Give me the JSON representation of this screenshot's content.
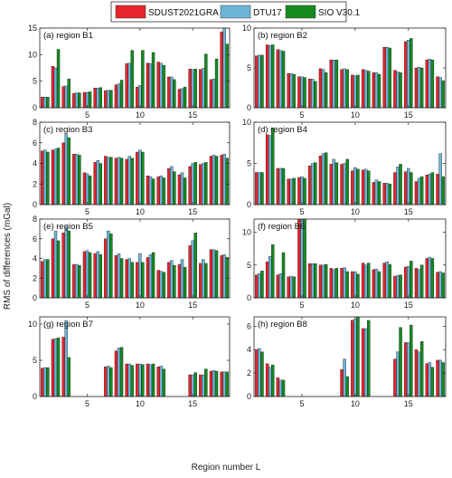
{
  "figure": {
    "ylabel": "RMS of differences (mGal)",
    "xlabel": "Region number L"
  },
  "legend": {
    "placement": "top-center",
    "entries": [
      {
        "name": "SDUST2021GRA",
        "color": "#e8232a"
      },
      {
        "name": "DTU17",
        "color": "#6cb4d8"
      },
      {
        "name": "SIO V30.1",
        "color": "#158a1f"
      }
    ]
  },
  "chart_data": [
    {
      "type": "bar",
      "title": "(a) region B1",
      "ylim": [
        0,
        15
      ],
      "yticks": [
        0,
        5,
        10,
        15
      ],
      "xlim": [
        0.5,
        18.5
      ],
      "xticks": [
        5,
        10,
        15
      ],
      "x": [
        1,
        2,
        3,
        4,
        5,
        6,
        7,
        8,
        9,
        10,
        11,
        12,
        13,
        14,
        15,
        16,
        17,
        18
      ],
      "series": [
        {
          "name": "SDUST2021GRA",
          "values": [
            2.0,
            7.8,
            4.0,
            2.7,
            2.9,
            3.7,
            3.2,
            4.3,
            8.3,
            3.9,
            8.4,
            8.6,
            5.8,
            3.5,
            7.3,
            7.2,
            5.3,
            14.3
          ]
        },
        {
          "name": "DTU17",
          "values": [
            2.0,
            7.5,
            4.1,
            2.8,
            2.9,
            3.7,
            3.3,
            4.5,
            8.4,
            4.2,
            8.3,
            8.4,
            5.8,
            3.6,
            7.2,
            7.4,
            5.4,
            15.0
          ]
        },
        {
          "name": "SIO V30.1",
          "values": [
            2.0,
            11.0,
            5.4,
            2.8,
            3.0,
            3.8,
            3.3,
            5.2,
            10.8,
            10.8,
            10.4,
            8.0,
            5.3,
            3.9,
            7.3,
            10.1,
            9.2,
            12.0
          ]
        }
      ]
    },
    {
      "type": "bar",
      "title": "(b) region B2",
      "ylim": [
        0,
        10
      ],
      "yticks": [
        0,
        5,
        10
      ],
      "xlim": [
        0.5,
        18.5
      ],
      "xticks": [
        5,
        10,
        15
      ],
      "x": [
        1,
        2,
        3,
        4,
        5,
        6,
        7,
        8,
        9,
        10,
        11,
        12,
        13,
        14,
        15,
        16,
        17,
        18
      ],
      "series": [
        {
          "name": "SDUST2021GRA",
          "values": [
            6.5,
            7.9,
            7.3,
            4.3,
            3.9,
            3.6,
            4.9,
            6.0,
            4.8,
            4.1,
            4.8,
            4.4,
            7.6,
            4.7,
            8.3,
            5.0,
            6.0,
            3.9
          ]
        },
        {
          "name": "DTU17",
          "values": [
            6.6,
            7.8,
            7.2,
            4.3,
            3.9,
            3.6,
            4.8,
            6.0,
            4.9,
            4.0,
            4.7,
            4.4,
            7.6,
            4.5,
            8.5,
            5.1,
            6.1,
            3.8
          ]
        },
        {
          "name": "SIO V30.1",
          "values": [
            6.6,
            7.9,
            7.1,
            4.2,
            3.8,
            3.3,
            4.4,
            6.0,
            4.8,
            4.1,
            4.6,
            4.2,
            7.5,
            4.4,
            8.7,
            5.0,
            6.0,
            3.4
          ]
        }
      ]
    },
    {
      "type": "bar",
      "title": "(c) region B3",
      "ylim": [
        0,
        8
      ],
      "yticks": [
        0,
        2,
        4,
        6,
        8
      ],
      "xlim": [
        0.5,
        18.5
      ],
      "xticks": [
        5,
        10,
        15
      ],
      "x": [
        1,
        2,
        3,
        4,
        5,
        6,
        7,
        8,
        9,
        10,
        11,
        12,
        13,
        14,
        15,
        16,
        17,
        18
      ],
      "series": [
        {
          "name": "SDUST2021GRA",
          "values": [
            5.2,
            5.3,
            6.0,
            4.9,
            3.1,
            4.1,
            4.7,
            4.5,
            4.4,
            5.1,
            2.8,
            2.7,
            3.5,
            2.9,
            3.7,
            3.9,
            4.7,
            4.8
          ]
        },
        {
          "name": "DTU17",
          "values": [
            5.3,
            5.4,
            6.8,
            4.9,
            3.0,
            4.3,
            4.6,
            4.6,
            4.7,
            5.3,
            2.7,
            2.8,
            3.7,
            3.1,
            4.0,
            4.0,
            4.8,
            4.9
          ]
        },
        {
          "name": "SIO V30.1",
          "values": [
            5.1,
            5.5,
            6.5,
            4.8,
            2.8,
            4.0,
            4.6,
            4.5,
            4.5,
            5.1,
            2.5,
            2.6,
            3.2,
            2.6,
            4.1,
            4.1,
            4.7,
            4.5
          ]
        }
      ]
    },
    {
      "type": "bar",
      "title": "(d) region B4",
      "ylim": [
        0,
        10
      ],
      "yticks": [
        0,
        5,
        10
      ],
      "xlim": [
        0.5,
        18.5
      ],
      "xticks": [
        5,
        10,
        15
      ],
      "x": [
        1,
        2,
        3,
        4,
        5,
        6,
        7,
        8,
        9,
        10,
        11,
        12,
        13,
        14,
        15,
        16,
        17,
        18
      ],
      "series": [
        {
          "name": "SDUST2021GRA",
          "values": [
            3.9,
            8.5,
            4.4,
            3.1,
            3.3,
            4.7,
            5.9,
            4.9,
            4.9,
            4.1,
            4.2,
            2.7,
            2.6,
            3.9,
            4.0,
            2.8,
            3.6,
            3.7
          ]
        },
        {
          "name": "DTU17",
          "values": [
            3.9,
            8.4,
            4.4,
            3.1,
            3.4,
            5.0,
            6.2,
            5.5,
            5.0,
            4.5,
            4.3,
            3.0,
            2.6,
            4.6,
            4.4,
            3.2,
            3.7,
            6.2
          ]
        },
        {
          "name": "SIO V30.1",
          "values": [
            3.9,
            9.3,
            4.4,
            3.2,
            3.2,
            5.1,
            6.3,
            5.1,
            5.5,
            4.3,
            4.1,
            2.8,
            2.5,
            4.9,
            3.9,
            3.4,
            3.9,
            3.4
          ]
        }
      ]
    },
    {
      "type": "bar",
      "title": "(e) region B5",
      "ylim": [
        0,
        8
      ],
      "yticks": [
        0,
        2,
        4,
        6,
        8
      ],
      "xlim": [
        0.5,
        18.5
      ],
      "xticks": [
        5,
        10,
        15
      ],
      "x": [
        1,
        2,
        3,
        4,
        5,
        6,
        7,
        8,
        9,
        10,
        11,
        12,
        13,
        14,
        15,
        16,
        17,
        18
      ],
      "series": [
        {
          "name": "SDUST2021GRA",
          "values": [
            3.7,
            6.0,
            6.6,
            3.4,
            4.7,
            4.5,
            6.0,
            4.3,
            3.9,
            3.6,
            4.1,
            2.8,
            3.6,
            3.4,
            5.3,
            3.5,
            4.9,
            4.3
          ]
        },
        {
          "name": "DTU17",
          "values": [
            3.9,
            6.8,
            7.2,
            3.4,
            4.8,
            4.7,
            6.8,
            4.5,
            4.0,
            4.5,
            4.4,
            2.7,
            3.8,
            3.9,
            5.8,
            3.9,
            4.9,
            4.4
          ]
        },
        {
          "name": "SIO V30.1",
          "values": [
            3.9,
            5.8,
            6.8,
            3.3,
            4.6,
            4.4,
            6.5,
            4.0,
            3.6,
            3.6,
            4.6,
            2.6,
            3.3,
            3.1,
            6.6,
            3.5,
            4.8,
            4.1
          ]
        }
      ]
    },
    {
      "type": "bar",
      "title": "(f) region B6",
      "ylim": [
        0,
        12
      ],
      "yticks": [
        0,
        5,
        10
      ],
      "xlim": [
        0.5,
        18.5
      ],
      "xticks": [
        5,
        10,
        15
      ],
      "x": [
        1,
        2,
        3,
        4,
        5,
        6,
        7,
        8,
        9,
        10,
        11,
        12,
        13,
        14,
        15,
        16,
        17,
        18
      ],
      "series": [
        {
          "name": "SDUST2021GRA",
          "values": [
            3.5,
            5.5,
            3.5,
            3.2,
            12.0,
            5.2,
            5.0,
            4.5,
            4.5,
            4.0,
            5.3,
            4.3,
            5.3,
            3.3,
            4.7,
            4.5,
            6.0,
            3.9
          ]
        },
        {
          "name": "DTU17",
          "values": [
            3.7,
            6.3,
            3.7,
            3.3,
            12.2,
            5.2,
            5.0,
            4.3,
            4.6,
            4.0,
            5.0,
            4.4,
            5.5,
            3.4,
            4.8,
            4.3,
            6.2,
            4.0
          ]
        },
        {
          "name": "SIO V30.1",
          "values": [
            4.1,
            8.1,
            6.9,
            3.2,
            11.9,
            5.2,
            5.1,
            4.5,
            4.0,
            3.6,
            5.3,
            4.0,
            5.1,
            3.5,
            5.6,
            5.0,
            6.0,
            3.8
          ]
        }
      ]
    },
    {
      "type": "bar",
      "title": "(g) region B7",
      "ylim": [
        0,
        11
      ],
      "yticks": [
        0,
        5,
        10
      ],
      "xlim": [
        0.5,
        18.5
      ],
      "xticks": [
        5,
        10,
        15
      ],
      "x": [
        1,
        2,
        3,
        4,
        5,
        6,
        7,
        8,
        9,
        10,
        11,
        12,
        13,
        14,
        15,
        16,
        17,
        18
      ],
      "series": [
        {
          "name": "SDUST2021GRA",
          "values": [
            3.9,
            7.9,
            8.2,
            0,
            0,
            0,
            4.1,
            6.3,
            4.5,
            4.5,
            4.5,
            4.1,
            0,
            0,
            3.0,
            3.0,
            3.5,
            3.4
          ]
        },
        {
          "name": "DTU17",
          "values": [
            4.0,
            8.0,
            10.5,
            0,
            0,
            0,
            4.2,
            6.7,
            4.5,
            4.5,
            4.4,
            4.2,
            0,
            0,
            3.0,
            3.0,
            3.6,
            3.4
          ]
        },
        {
          "name": "SIO V30.1",
          "values": [
            4.0,
            8.1,
            5.4,
            0,
            0,
            0,
            4.0,
            6.8,
            4.3,
            4.4,
            4.5,
            3.8,
            0,
            0,
            3.3,
            3.8,
            3.5,
            3.4
          ]
        }
      ]
    },
    {
      "type": "bar",
      "title": "(h) region B8",
      "ylim": [
        0,
        6.8
      ],
      "yticks": [
        0,
        2,
        4,
        6
      ],
      "xlim": [
        0.5,
        18.5
      ],
      "xticks": [
        5,
        10,
        15
      ],
      "x": [
        1,
        2,
        3,
        4,
        5,
        6,
        7,
        8,
        9,
        10,
        11,
        12,
        13,
        14,
        15,
        16,
        17,
        18
      ],
      "series": [
        {
          "name": "SDUST2021GRA",
          "values": [
            4.0,
            2.8,
            1.6,
            0,
            0,
            0,
            0,
            0,
            2.3,
            6.5,
            5.8,
            0,
            0,
            3.2,
            4.6,
            4.0,
            2.8,
            3.1
          ]
        },
        {
          "name": "DTU17",
          "values": [
            4.1,
            2.5,
            1.4,
            0,
            0,
            0,
            0,
            0,
            3.2,
            6.6,
            5.8,
            0,
            0,
            3.8,
            4.6,
            3.8,
            2.9,
            3.1
          ]
        },
        {
          "name": "SIO V30.1",
          "values": [
            3.8,
            2.7,
            1.4,
            0,
            0,
            0,
            0,
            0,
            1.7,
            6.8,
            6.5,
            0,
            0,
            5.9,
            6.1,
            4.7,
            2.5,
            2.9
          ]
        }
      ]
    }
  ]
}
